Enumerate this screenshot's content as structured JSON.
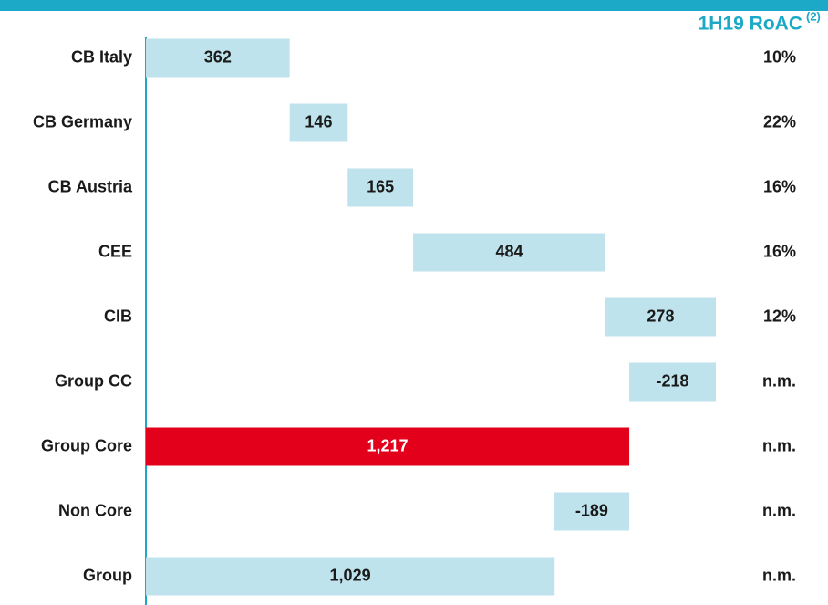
{
  "chart_data": {
    "type": "waterfall",
    "orientation": "horizontal",
    "categories": [
      "CB Italy",
      "CB Germany",
      "CB Austria",
      "CEE",
      "CIB",
      "Group CC",
      "Group Core",
      "Non Core",
      "Group"
    ],
    "values": [
      362,
      146,
      165,
      484,
      278,
      -218,
      1217,
      -189,
      1029
    ],
    "value_labels": [
      "362",
      "146",
      "165",
      "484",
      "278",
      "-218",
      "1,217",
      "-189",
      "1,029"
    ],
    "total": [
      false,
      false,
      false,
      false,
      false,
      false,
      true,
      false,
      true
    ],
    "colors": [
      "#bfe3ec",
      "#bfe3ec",
      "#bfe3ec",
      "#bfe3ec",
      "#bfe3ec",
      "#bfe3ec",
      "#e2001a",
      "#bfe3ec",
      "#bfe3ec"
    ],
    "side_header": {
      "text": "1H19 RoAC",
      "superscript": "(2)"
    },
    "side_labels": [
      "10%",
      "22%",
      "16%",
      "16%",
      "12%",
      "n.m.",
      "n.m.",
      "n.m.",
      "n.m."
    ]
  }
}
